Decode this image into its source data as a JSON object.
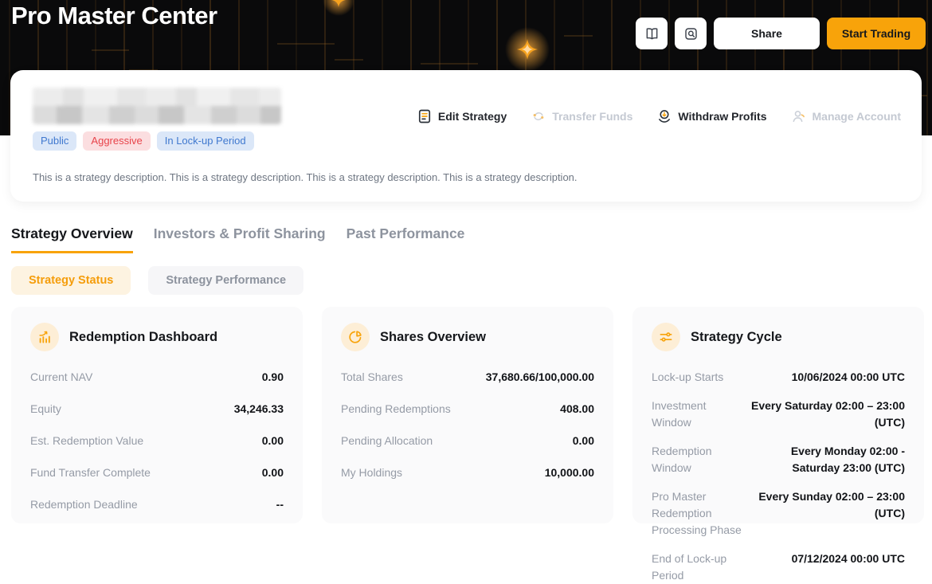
{
  "hero": {
    "title": "Pro Master Center",
    "buttons": {
      "share": "Share",
      "start_trading": "Start Trading"
    },
    "icon_buttons": [
      "book-icon",
      "preview-icon"
    ]
  },
  "strategy": {
    "badges": [
      {
        "label": "Public",
        "style": "blue"
      },
      {
        "label": "Aggressive",
        "style": "red"
      },
      {
        "label": "In Lock-up Period",
        "style": "blue"
      }
    ],
    "description": "This is a strategy description. This is a strategy description. This is a strategy description. This is a strategy description.",
    "actions": [
      {
        "label": "Edit Strategy",
        "icon": "edit-strategy-icon",
        "enabled": true
      },
      {
        "label": "Transfer Funds",
        "icon": "transfer-funds-icon",
        "enabled": false
      },
      {
        "label": "Withdraw Profits",
        "icon": "withdraw-profits-icon",
        "enabled": true
      },
      {
        "label": "Manage Account",
        "icon": "manage-account-icon",
        "enabled": false
      }
    ]
  },
  "tabs": [
    {
      "label": "Strategy Overview",
      "active": true
    },
    {
      "label": "Investors & Profit Sharing",
      "active": false
    },
    {
      "label": "Past Performance",
      "active": false
    }
  ],
  "subtabs": [
    {
      "label": "Strategy Status",
      "active": true
    },
    {
      "label": "Strategy Performance",
      "active": false
    }
  ],
  "cards": [
    {
      "title": "Redemption Dashboard",
      "icon": "bar-chart-icon",
      "rows": [
        {
          "label": "Current NAV",
          "value": "0.90"
        },
        {
          "label": "Equity",
          "value": "34,246.33"
        },
        {
          "label": "Est. Redemption Value",
          "value": "0.00"
        },
        {
          "label": "Fund Transfer Complete",
          "value": "0.00"
        },
        {
          "label": "Redemption Deadline",
          "value": "--"
        }
      ]
    },
    {
      "title": "Shares Overview",
      "icon": "pie-chart-icon",
      "rows": [
        {
          "label": "Total Shares",
          "value": "37,680.66/100,000.00"
        },
        {
          "label": "Pending Redemptions",
          "value": "408.00"
        },
        {
          "label": "Pending Allocation",
          "value": "0.00"
        },
        {
          "label": "My Holdings",
          "value": "10,000.00"
        }
      ]
    },
    {
      "title": "Strategy Cycle",
      "icon": "sliders-icon",
      "rows": [
        {
          "label": "Lock-up Starts",
          "value": "10/06/2024 00:00 UTC"
        },
        {
          "label": "Investment Window",
          "value": "Every Saturday 02:00 – 23:00 (UTC)"
        },
        {
          "label": "Redemption Window",
          "value": "Every Monday 02:00 - Saturday 23:00 (UTC)"
        },
        {
          "label": "Pro Master Redemption Processing Phase",
          "value": "Every Sunday 02:00 – 23:00 (UTC)"
        },
        {
          "label": "End of Lock-up Period",
          "value": "07/12/2024 00:00 UTC"
        }
      ]
    }
  ],
  "colors": {
    "accent_orange": "#F8A30A",
    "hero_bg": "#0a0a0b",
    "pattern_line": "#9c6524",
    "badge_blue_bg": "#dbe7f8",
    "badge_blue_text": "#4079cf",
    "badge_red_bg": "#fbdee0",
    "badge_red_text": "#e8444b",
    "disabled_text": "#c4c9d2",
    "label_gray": "#959ba6",
    "value_dark": "#121418"
  }
}
